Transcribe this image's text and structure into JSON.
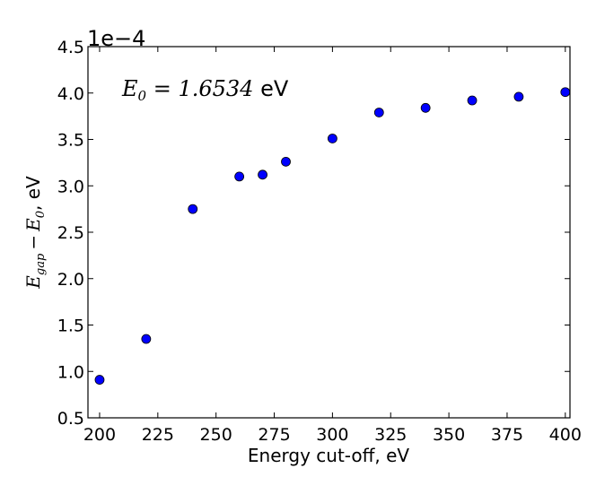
{
  "chart_data": {
    "type": "scatter",
    "title": "",
    "xlabel": "Energy cut-off, eV",
    "ylabel": {
      "symbol": "E",
      "sub": "gap",
      "minus": "−",
      "symbol2": "E",
      "sub2": "0",
      "unit": ", eV"
    },
    "annotation": {
      "symbol": "E",
      "sub": "0",
      "eq": " = ",
      "value": "1.6534",
      "unit": " eV"
    },
    "offset_label": "1e−4",
    "xlim": [
      195,
      402
    ],
    "ylim": [
      0.5,
      4.5
    ],
    "xticks": [
      200,
      225,
      250,
      275,
      300,
      325,
      350,
      375,
      400
    ],
    "yticks": [
      "0.5",
      "1.0",
      "1.5",
      "2.0",
      "2.5",
      "3.0",
      "3.5",
      "4.0",
      "4.5"
    ],
    "grid": false,
    "legend": "none",
    "marker_color": "#0000ff",
    "points": [
      {
        "x": 200,
        "y": 0.91
      },
      {
        "x": 220,
        "y": 1.35
      },
      {
        "x": 240,
        "y": 2.75
      },
      {
        "x": 260,
        "y": 3.1
      },
      {
        "x": 270,
        "y": 3.12
      },
      {
        "x": 280,
        "y": 3.26
      },
      {
        "x": 300,
        "y": 3.51
      },
      {
        "x": 320,
        "y": 3.79
      },
      {
        "x": 340,
        "y": 3.84
      },
      {
        "x": 360,
        "y": 3.92
      },
      {
        "x": 380,
        "y": 3.96
      },
      {
        "x": 400,
        "y": 4.01
      }
    ]
  }
}
